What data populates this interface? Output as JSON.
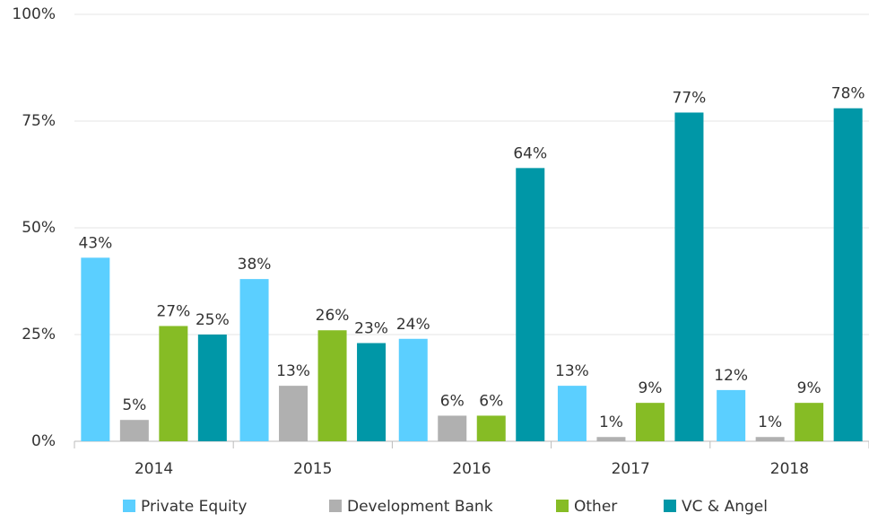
{
  "chart_data": {
    "type": "bar",
    "categories": [
      "2014",
      "2015",
      "2016",
      "2017",
      "2018"
    ],
    "series": [
      {
        "name": "Private Equity",
        "color": "#5bcfff",
        "values": [
          43,
          38,
          24,
          13,
          12
        ],
        "value_labels": [
          "43%",
          "38%",
          "24%",
          "13%",
          "12%"
        ]
      },
      {
        "name": "Development Bank",
        "color": "#b0b0b0",
        "values": [
          5,
          13,
          6,
          1,
          1
        ],
        "value_labels": [
          "5%",
          "13%",
          "6%",
          "1%",
          "1%"
        ]
      },
      {
        "name": "Other",
        "color": "#86bc25",
        "values": [
          27,
          26,
          6,
          9,
          9
        ],
        "value_labels": [
          "27%",
          "26%",
          "6%",
          "9%",
          "9%"
        ]
      },
      {
        "name": "VC & Angel",
        "color": "#0097a7",
        "values": [
          25,
          23,
          64,
          77,
          78
        ],
        "value_labels": [
          "25%",
          "23%",
          "64%",
          "77%",
          "78%"
        ]
      }
    ],
    "ylim": [
      0,
      100
    ],
    "yticks": [
      {
        "value": 0,
        "label": "0%"
      },
      {
        "value": 25,
        "label": "25%"
      },
      {
        "value": 50,
        "label": "50%"
      },
      {
        "value": 75,
        "label": "75%"
      },
      {
        "value": 100,
        "label": "100%"
      }
    ],
    "grid": true,
    "legend": "bottom"
  }
}
